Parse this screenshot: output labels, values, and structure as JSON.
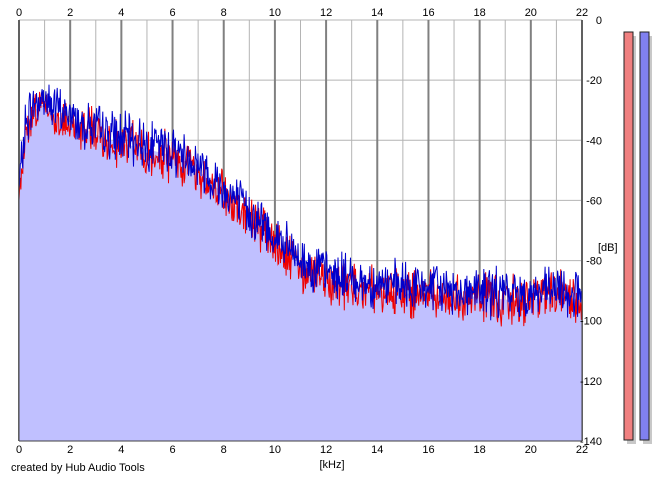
{
  "app": {
    "credit": "created by Hub Audio Tools"
  },
  "chart_data": {
    "type": "area",
    "xlabel": "[kHz]",
    "ylabel": "[dB]",
    "xlim": [
      0,
      22
    ],
    "ylim": [
      -140,
      0
    ],
    "x_ticks": [
      0,
      2,
      4,
      6,
      8,
      10,
      12,
      14,
      16,
      18,
      20,
      22
    ],
    "y_ticks": [
      0,
      -20,
      -40,
      -60,
      -80,
      -100,
      -120,
      -140
    ],
    "grid": true,
    "x_major_ticks": [
      0,
      2,
      4,
      6,
      8,
      10,
      12,
      14,
      16,
      18,
      20,
      22
    ],
    "x_minor_ticks": [
      1,
      3,
      5,
      7,
      9,
      11,
      13,
      15,
      17,
      19,
      21
    ],
    "colors": {
      "fill": "#c0c0ff",
      "left_channel": "#ee0000",
      "right_channel": "#0000cc",
      "grid_major": "#808080",
      "grid_minor": "#b4b4b4",
      "meter_left": "#f08080",
      "meter_right": "#8080f0"
    },
    "series": [
      {
        "channel": "left",
        "x": [
          0,
          0.25,
          0.5,
          0.75,
          1,
          1.5,
          2,
          2.5,
          3,
          3.5,
          4,
          4.5,
          5,
          5.5,
          6,
          6.5,
          7,
          7.5,
          8,
          8.5,
          9,
          9.5,
          10,
          10.5,
          11,
          11.5,
          12,
          12.5,
          13,
          13.5,
          14,
          14.5,
          15,
          16,
          17,
          18,
          19,
          20,
          21,
          22
        ],
        "values": [
          -60,
          -38,
          -31,
          -29,
          -28,
          -33,
          -35,
          -36,
          -37,
          -39,
          -41,
          -42,
          -44,
          -45,
          -46,
          -48,
          -51,
          -54,
          -58,
          -62,
          -66,
          -70,
          -75,
          -79,
          -83,
          -85,
          -86,
          -87,
          -88,
          -89,
          -90,
          -90,
          -91,
          -91,
          -92,
          -92,
          -93,
          -93,
          -92,
          -93
        ]
      },
      {
        "channel": "right",
        "x": [
          0,
          0.25,
          0.5,
          0.75,
          1,
          1.5,
          2,
          2.5,
          3,
          3.5,
          4,
          4.5,
          5,
          5.5,
          6,
          6.5,
          7,
          7.5,
          8,
          8.5,
          9,
          9.5,
          10,
          10.5,
          11,
          11.5,
          12,
          12.5,
          13,
          13.5,
          14,
          14.5,
          15,
          16,
          17,
          18,
          19,
          20,
          21,
          22
        ],
        "values": [
          -56,
          -35,
          -29,
          -27,
          -26,
          -30,
          -32,
          -34,
          -36,
          -38,
          -39,
          -40,
          -41,
          -42,
          -43,
          -45,
          -48,
          -52,
          -56,
          -60,
          -64,
          -68,
          -72,
          -76,
          -80,
          -82,
          -84,
          -85,
          -86,
          -87,
          -88,
          -88,
          -89,
          -89,
          -90,
          -90,
          -91,
          -91,
          -90,
          -91
        ]
      }
    ],
    "meters": [
      {
        "channel": "left",
        "level_db": -5
      },
      {
        "channel": "right",
        "level_db": -4
      }
    ]
  }
}
